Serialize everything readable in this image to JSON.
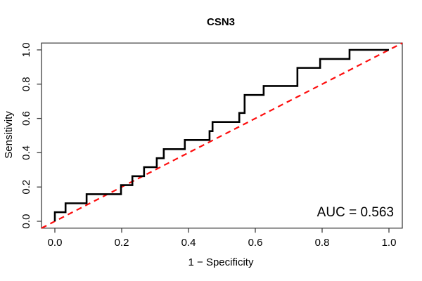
{
  "title": "CSN3",
  "x_axis": {
    "label": "1 − Specificity",
    "ticks": [
      "0.0",
      "0.2",
      "0.4",
      "0.6",
      "0.8",
      "1.0"
    ],
    "tick_values": [
      0.0,
      0.2,
      0.4,
      0.6,
      0.8,
      1.0
    ]
  },
  "y_axis": {
    "label": "Sensitivity",
    "ticks": [
      "0.0",
      "0.2",
      "0.4",
      "0.6",
      "0.8",
      "1.0"
    ],
    "tick_values": [
      0.0,
      0.2,
      0.4,
      0.6,
      0.8,
      1.0
    ]
  },
  "annotation": {
    "auc_label": "AUC = 0.563"
  },
  "colors": {
    "curve": "#000000",
    "diagonal": "#fd0d0d",
    "axis": "#3e3e3e"
  },
  "chart_data": {
    "type": "line",
    "subtype": "roc-step-curve",
    "title": "CSN3",
    "xlabel": "1 − Specificity",
    "ylabel": "Sensitivity",
    "xlim": [
      -0.04,
      1.04
    ],
    "ylim": [
      -0.04,
      1.04
    ],
    "grid": false,
    "legend": "none",
    "x_ticks": [
      0.0,
      0.2,
      0.4,
      0.6,
      0.8,
      1.0
    ],
    "y_ticks": [
      0.0,
      0.2,
      0.4,
      0.6,
      0.8,
      1.0
    ],
    "auc": 0.563,
    "series": [
      {
        "name": "ROC curve",
        "style": "step",
        "color": "#000000",
        "points": [
          [
            0.0,
            0.0
          ],
          [
            0.0,
            0.053
          ],
          [
            0.032,
            0.105
          ],
          [
            0.095,
            0.158
          ],
          [
            0.198,
            0.211
          ],
          [
            0.232,
            0.263
          ],
          [
            0.267,
            0.316
          ],
          [
            0.305,
            0.368
          ],
          [
            0.326,
            0.421
          ],
          [
            0.389,
            0.474
          ],
          [
            0.463,
            0.526
          ],
          [
            0.472,
            0.579
          ],
          [
            0.552,
            0.632
          ],
          [
            0.568,
            0.737
          ],
          [
            0.625,
            0.789
          ],
          [
            0.726,
            0.895
          ],
          [
            0.794,
            0.947
          ],
          [
            0.882,
            1.0
          ],
          [
            1.0,
            1.0
          ]
        ]
      },
      {
        "name": "chance diagonal",
        "style": "dashed",
        "color": "#fd0d0d",
        "points": [
          [
            -0.04,
            -0.04
          ],
          [
            1.04,
            1.04
          ]
        ]
      }
    ],
    "annotations": [
      {
        "text": "AUC = 0.563",
        "position": "bottom-right"
      }
    ]
  }
}
